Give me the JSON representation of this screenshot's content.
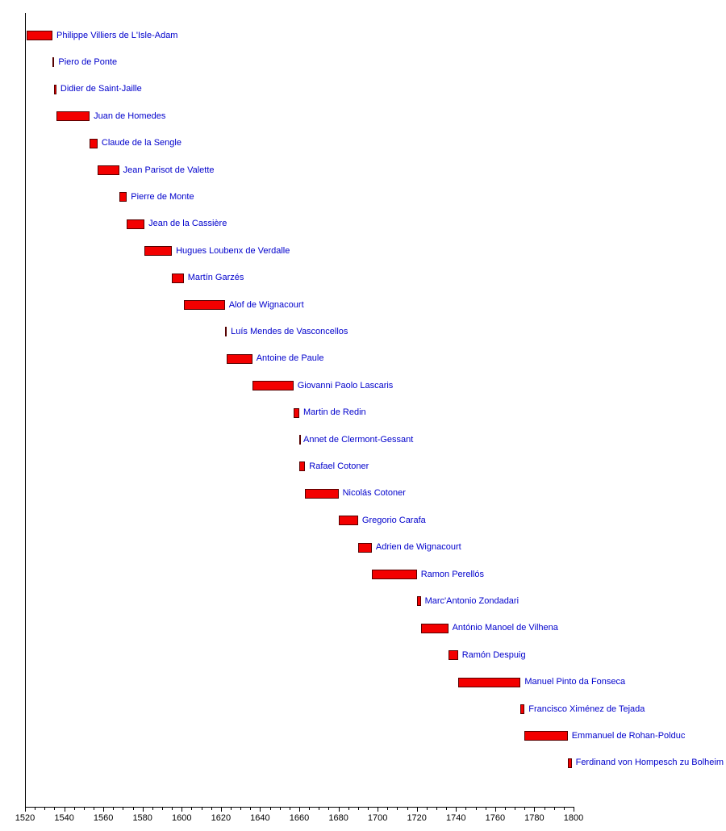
{
  "chart_data": {
    "type": "bar",
    "variant": "horizontal-timeline",
    "title": "",
    "xlabel": "",
    "ylabel": "",
    "grid": false,
    "legend": false,
    "x_axis": {
      "min": 1520,
      "max": 1800,
      "major_tick_interval": 20,
      "minor_tick_interval": 5,
      "tick_labels": [
        "1520",
        "1540",
        "1560",
        "1580",
        "1600",
        "1620",
        "1640",
        "1660",
        "1680",
        "1700",
        "1720",
        "1740",
        "1760",
        "1780",
        "1800"
      ]
    },
    "bars": [
      {
        "label": "Philippe Villiers de L'Isle-Adam",
        "start": 1521,
        "end": 1534
      },
      {
        "label": "Piero de Ponte",
        "start": 1534,
        "end": 1535
      },
      {
        "label": "Didier de Saint-Jaille",
        "start": 1535,
        "end": 1536
      },
      {
        "label": "Juan de Homedes",
        "start": 1536,
        "end": 1553
      },
      {
        "label": "Claude de la Sengle",
        "start": 1553,
        "end": 1557
      },
      {
        "label": "Jean Parisot de Valette",
        "start": 1557,
        "end": 1568
      },
      {
        "label": "Pierre de Monte",
        "start": 1568,
        "end": 1572
      },
      {
        "label": "Jean de la Cassière",
        "start": 1572,
        "end": 1581
      },
      {
        "label": "Hugues Loubenx de Verdalle",
        "start": 1581,
        "end": 1595
      },
      {
        "label": "Martín Garzés",
        "start": 1595,
        "end": 1601
      },
      {
        "label": "Alof de Wignacourt",
        "start": 1601,
        "end": 1622
      },
      {
        "label": "Luís Mendes de Vasconcellos",
        "start": 1622,
        "end": 1623
      },
      {
        "label": "Antoine de Paule",
        "start": 1623,
        "end": 1636
      },
      {
        "label": "Giovanni Paolo Lascaris",
        "start": 1636,
        "end": 1657
      },
      {
        "label": "Martin de Redin",
        "start": 1657,
        "end": 1660
      },
      {
        "label": "Annet de Clermont-Gessant",
        "start": 1660,
        "end": 1660
      },
      {
        "label": "Rafael Cotoner",
        "start": 1660,
        "end": 1663
      },
      {
        "label": "Nicolás Cotoner",
        "start": 1663,
        "end": 1680
      },
      {
        "label": "Gregorio Carafa",
        "start": 1680,
        "end": 1690
      },
      {
        "label": "Adrien de Wignacourt",
        "start": 1690,
        "end": 1697
      },
      {
        "label": "Ramon Perellós",
        "start": 1697,
        "end": 1720
      },
      {
        "label": "Marc'Antonio Zondadari",
        "start": 1720,
        "end": 1722
      },
      {
        "label": "António Manoel de Vilhena",
        "start": 1722,
        "end": 1736
      },
      {
        "label": "Ramón Despuig",
        "start": 1736,
        "end": 1741
      },
      {
        "label": "Manuel Pinto da Fonseca",
        "start": 1741,
        "end": 1773
      },
      {
        "label": "Francisco Ximénez de Tejada",
        "start": 1773,
        "end": 1775
      },
      {
        "label": "Emmanuel de Rohan-Polduc",
        "start": 1775,
        "end": 1797
      },
      {
        "label": "Ferdinand von Hompesch zu Bolheim",
        "start": 1797,
        "end": 1799
      }
    ]
  },
  "colors": {
    "bar_fill": "#f30000",
    "bar_border": "#550000",
    "name_text": "#0000cc",
    "axis": "#000000",
    "tick_text": "#000000"
  }
}
